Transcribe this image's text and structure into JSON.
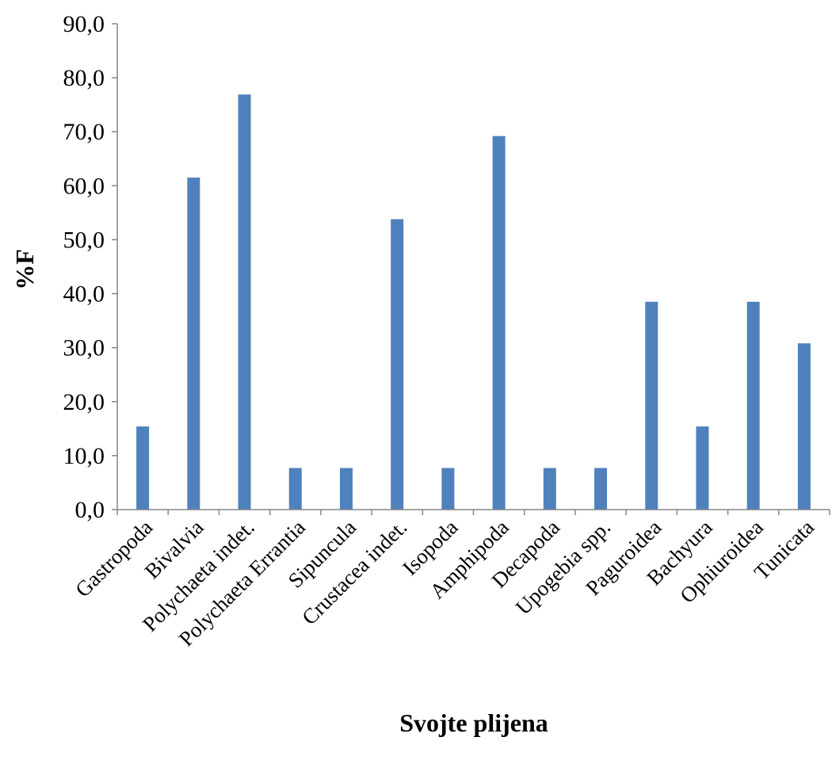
{
  "chart_data": {
    "type": "bar",
    "title": "",
    "xlabel": "Svojte plijena",
    "ylabel": "%F",
    "ylim": [
      0,
      90
    ],
    "ytick_step": 10,
    "ytick_labels": [
      "0,0",
      "10,0",
      "20,0",
      "30,0",
      "40,0",
      "50,0",
      "60,0",
      "70,0",
      "80,0",
      "90,0"
    ],
    "grid": false,
    "legend": "none",
    "categories": [
      "Gastropoda",
      "Bivalvia",
      "Polychaeta indet.",
      "Polychaeta Errantia",
      "Sipuncula",
      "Crustacea indet.",
      "Isopoda",
      "Amphipoda",
      "Decapoda",
      "Upogebia spp.",
      "Paguroidea",
      "Bachyura",
      "Ophiuroidea",
      "Tunicata"
    ],
    "values": [
      15.4,
      61.5,
      76.9,
      7.7,
      7.7,
      53.8,
      7.7,
      69.2,
      7.7,
      7.7,
      38.5,
      15.4,
      38.5,
      30.8
    ],
    "colors": {
      "bar": "#4f81bd",
      "axis": "#868686"
    }
  }
}
